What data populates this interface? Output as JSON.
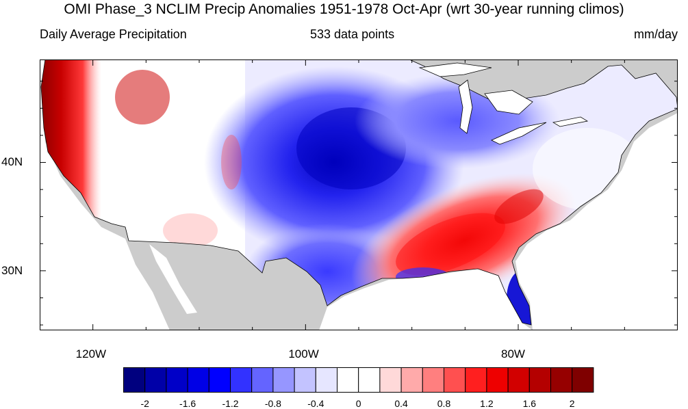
{
  "title": "OMI Phase_3 NCLIM Precip Anomalies 1951-1978 Oct-Apr (wrt 30-year running climos)",
  "subtitle_left": "Daily Average Precipitation",
  "subtitle_center": "533 data points",
  "subtitle_right": "mm/day",
  "map": {
    "region": "Contiguous United States",
    "projection": "cylindrical equidistant",
    "lon_range": [
      -125,
      -65
    ],
    "lat_range": [
      24.5,
      49.5
    ],
    "land_outside_domain_color": "#cccccc",
    "ocean_color": "#ffffff",
    "lat_ticks": [
      {
        "value": 40,
        "label": "40N"
      },
      {
        "value": 30,
        "label": "30N"
      }
    ],
    "lon_ticks": [
      {
        "value": -120,
        "label": "120W"
      },
      {
        "value": -100,
        "label": "100W"
      },
      {
        "value": -80,
        "label": "80W"
      }
    ],
    "anomaly_features": [
      {
        "area": "Pacific Northwest / West Coast",
        "sign": "positive",
        "approx_value": 2.2
      },
      {
        "area": "Northern Rockies",
        "sign": "positive",
        "approx_value": 1.4
      },
      {
        "area": "Southwest",
        "sign": "positive",
        "approx_value": 0.5
      },
      {
        "area": "Central / Northern Plains",
        "sign": "negative",
        "approx_value": -1.6
      },
      {
        "area": "Southern Plains / Texas",
        "sign": "negative",
        "approx_value": -1.0
      },
      {
        "area": "Great Lakes",
        "sign": "negative",
        "approx_value": -0.8
      },
      {
        "area": "Lower Mississippi / Tennessee Valley",
        "sign": "positive",
        "approx_value": 1.5
      },
      {
        "area": "Florida peninsula",
        "sign": "negative",
        "approx_value": -1.8
      },
      {
        "area": "Gulf Coast",
        "sign": "negative",
        "approx_value": -1.2
      },
      {
        "area": "Northeast",
        "sign": "near-zero",
        "approx_value": 0.0
      }
    ]
  },
  "colorbar": {
    "colors": [
      "#00007f",
      "#0000a8",
      "#0000c8",
      "#0000e6",
      "#0000ff",
      "#3232ff",
      "#6464ff",
      "#9696ff",
      "#c3c3ff",
      "#e6e6ff",
      "#ffffff",
      "#ffffff",
      "#ffd9d9",
      "#ffaaaa",
      "#ff7f7f",
      "#ff5050",
      "#ff1f1f",
      "#ee0000",
      "#d20000",
      "#b40000",
      "#960000",
      "#7f0000"
    ],
    "labels": [
      "-2",
      "-1.6",
      "-1.2",
      "-0.8",
      "-0.4",
      "0",
      "0.4",
      "0.8",
      "1.2",
      "1.6",
      "2"
    ],
    "label_values": [
      -2,
      -1.6,
      -1.2,
      -0.8,
      -0.4,
      0,
      0.4,
      0.8,
      1.2,
      1.6,
      2
    ]
  }
}
